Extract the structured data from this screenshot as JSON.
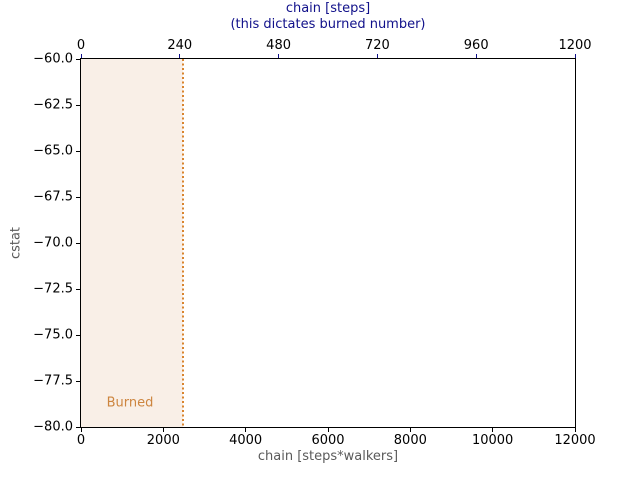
{
  "chart_data": {
    "type": "area",
    "title_line1": "chain [steps]",
    "title_line2": "(this dictates burned number)",
    "xlabel_bottom": "chain [steps*walkers]",
    "ylabel": "cstat",
    "xlim_bottom": [
      0,
      12000
    ],
    "xlim_top": [
      0,
      1200
    ],
    "ylim": [
      -80,
      -60
    ],
    "x_ticks_bottom_values": [
      0,
      2000,
      4000,
      6000,
      8000,
      10000,
      12000
    ],
    "x_ticks_bottom_labels": [
      "0",
      "2000",
      "4000",
      "6000",
      "8000",
      "10000",
      "12000"
    ],
    "x_ticks_top_values": [
      0,
      240,
      480,
      720,
      960,
      1200
    ],
    "x_ticks_top_labels": [
      "0",
      "240",
      "480",
      "720",
      "960",
      "1200"
    ],
    "y_ticks_values": [
      -60.0,
      -62.5,
      -65.0,
      -67.5,
      -70.0,
      -72.5,
      -75.0,
      -77.5,
      -80.0
    ],
    "y_ticks_labels": [
      "−60.0",
      "−62.5",
      "−65.0",
      "−67.5",
      "−70.0",
      "−72.5",
      "−75.0",
      "−77.5",
      "−80.0"
    ],
    "grid": false,
    "legend": null,
    "burned": {
      "region_start": 0,
      "region_end": 2480,
      "line_x": 2480,
      "label": "Burned",
      "label_x": 1190,
      "label_y": -78.7
    },
    "colors": {
      "title": "#10108a",
      "top_tick_mark": "#10108a",
      "bottom_tick_mark": "#000000",
      "left_tick_mark": "#000000",
      "tick_label": "#000000",
      "axis_label": "#5a5a5a",
      "spine": "#000000",
      "burn_fill": "#f9efe7",
      "burn_line": "#d9842e",
      "burn_label": "#cd853f",
      "background": "#ffffff"
    }
  }
}
